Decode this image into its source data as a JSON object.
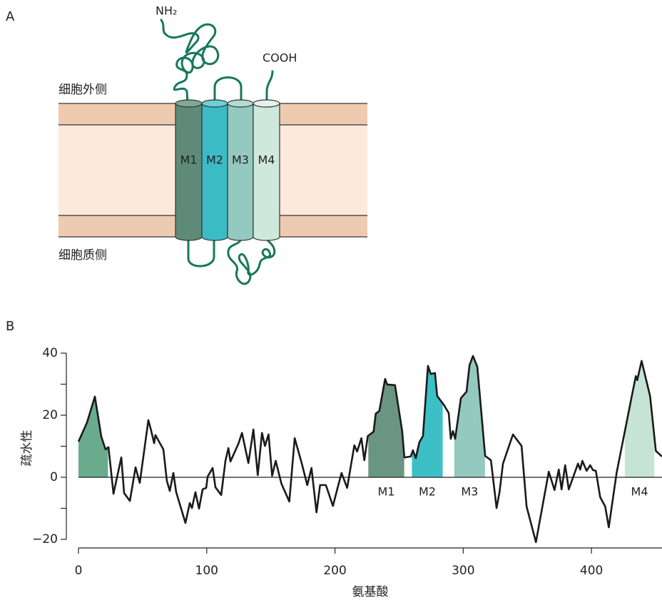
{
  "panel_a": {
    "label": "A",
    "n_terminus": "NH₂",
    "c_terminus": "COOH",
    "outside": "细胞外侧",
    "inside": "细胞质侧",
    "segments": [
      "M1",
      "M2",
      "M3",
      "M4"
    ]
  },
  "chart_data": {
    "type": "line",
    "panel_label": "B",
    "xlabel": "氨基酸",
    "ylabel": "疏水性",
    "x": [
      0,
      6.7,
      12.8,
      17.8,
      21.1,
      23.4,
      27.3,
      33.4,
      35.6,
      40.1,
      44.5,
      47.8,
      54.5,
      56.7,
      59,
      60,
      66.2,
      68.9,
      71.2,
      74,
      76.2,
      83.4,
      86.8,
      88.5,
      91.2,
      94,
      96.8,
      99.6,
      100.7,
      104.6,
      106.8,
      111.3,
      114.6,
      116.9,
      118.5,
      124.7,
      127.5,
      132.5,
      136.4,
      139.8,
      143.1,
      145.4,
      148.2,
      151,
      153.8,
      158.3,
      164.4,
      168.6,
      173.9,
      178.4,
      181.7,
      185.6,
      188.4,
      192.9,
      198.4,
      205.1,
      209.5,
      215.1,
      217.3,
      220.6,
      222.9,
      225.6,
      230.1,
      231.8,
      234.6,
      239.1,
      240.7,
      246.8,
      252.4,
      254.1,
      259.1,
      260.8,
      263,
      265.8,
      268.6,
      272.5,
      274.7,
      278,
      279.7,
      284.8,
      288.7,
      290.3,
      292,
      293.7,
      298.2,
      302.6,
      304.9,
      307.6,
      311,
      317.1,
      321.6,
      326,
      328.3,
      331,
      338.8,
      345.5,
      349.4,
      356.7,
      366.7,
      371.2,
      374.5,
      376.7,
      379.5,
      382.3,
      389.5,
      391.2,
      392.9,
      396.2,
      399,
      401.2,
      403.4,
      406.8,
      410.7,
      413.5,
      419.6,
      431.9,
      434.6,
      435.7,
      439.1,
      445.7,
      450.2,
      455
    ],
    "series": [
      {
        "color": "#1a1a1a",
        "values": [
          11.5,
          17.7,
          26,
          13.1,
          9,
          9.7,
          -5.3,
          6.4,
          -5.1,
          -7.6,
          3.2,
          -1.8,
          18.4,
          15,
          11,
          13.6,
          9,
          -1.1,
          -4.4,
          1.4,
          -4.8,
          -14.7,
          -8.3,
          -9.9,
          -4.8,
          -10.1,
          -3.9,
          -3.4,
          0.2,
          3,
          -3.2,
          -5.7,
          5.3,
          9.4,
          5.1,
          10.8,
          14.3,
          4.6,
          15.4,
          0.7,
          14.3,
          10.1,
          13.8,
          0.5,
          5.3,
          -2.1,
          -7.8,
          12.6,
          4.8,
          -2.5,
          3,
          -11.3,
          -2.5,
          -2.5,
          -9.2,
          1.4,
          -3.4,
          10.3,
          8.3,
          12.6,
          5.5,
          13.3,
          14.7,
          20.5,
          21.4,
          31.7,
          29.9,
          29.7,
          14.9,
          6.4,
          6.7,
          8.7,
          6.2,
          11.3,
          13.3,
          35.9,
          33.3,
          33.6,
          26.2,
          23.4,
          20.7,
          12.4,
          14.9,
          12.4,
          25.5,
          27.6,
          36.1,
          39.1,
          35.6,
          6.9,
          5.5,
          -9.9,
          -4.8,
          4.4,
          13.8,
          10.1,
          -9.4,
          -20.9,
          1.8,
          -4.1,
          2.5,
          -3.9,
          3.9,
          -3.9,
          4.4,
          2.5,
          5.3,
          2.1,
          3.9,
          2.3,
          2.1,
          -6.4,
          -9.4,
          -16.1,
          1.4,
          27.1,
          32.6,
          31.3,
          37.5,
          26.2,
          8.5,
          6.7
        ]
      }
    ],
    "xlim": [
      0,
      455
    ],
    "xticks": [
      0,
      100,
      200,
      300,
      400
    ],
    "ylim": [
      -22,
      42
    ],
    "yticks": [
      {
        "value": -20,
        "label": "−20"
      },
      0,
      20,
      40
    ],
    "yticks_minor": [
      -10,
      10,
      30
    ],
    "regions": [
      {
        "xrange": [
          0,
          23
        ],
        "color": "#6aab8e"
      },
      {
        "name": "M1",
        "xrange": [
          226,
          254
        ],
        "color": "#6a9582"
      },
      {
        "name": "M2",
        "xrange": [
          260,
          284
        ],
        "color": "#3dbfc6"
      },
      {
        "name": "M3",
        "xrange": [
          293,
          317
        ],
        "color": "#94c9bf"
      },
      {
        "name": "M4",
        "xrange": [
          426,
          449
        ],
        "color": "#c6e4d6"
      }
    ]
  }
}
